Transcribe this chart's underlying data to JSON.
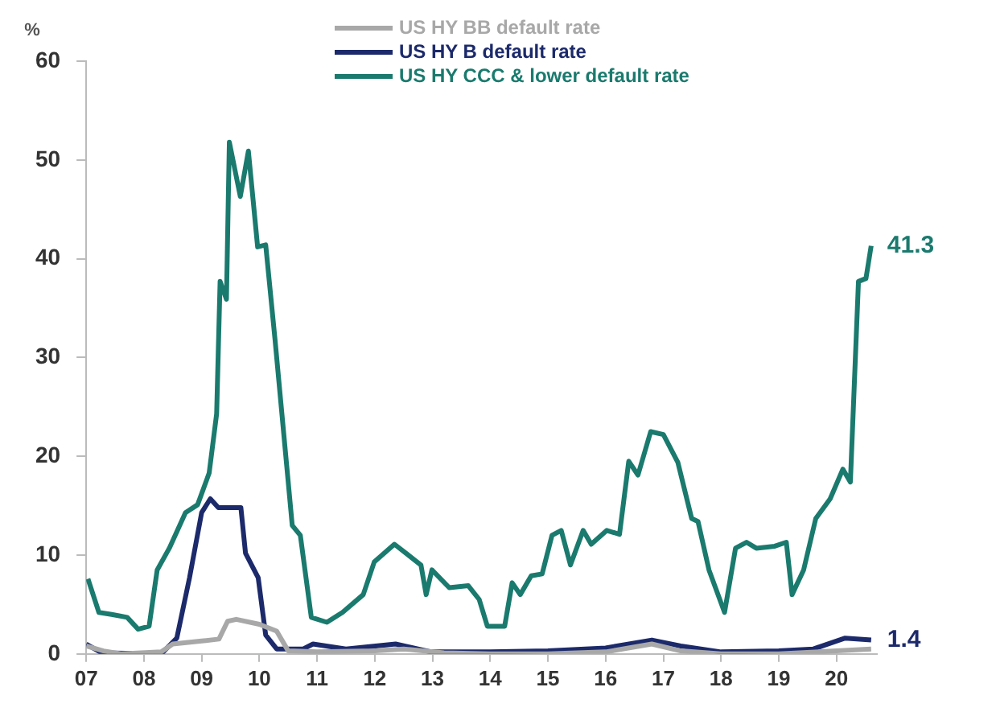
{
  "chart_data": {
    "type": "line",
    "ylabel": "%",
    "legend": "top",
    "grid": false,
    "marker": "none",
    "line_style": "solid",
    "xlim": [
      2007,
      2020.7
    ],
    "ylim": [
      0,
      60
    ],
    "yticks": [
      0,
      10,
      20,
      30,
      40,
      50,
      60
    ],
    "xticks": [
      {
        "value": 2007,
        "label": "07"
      },
      {
        "value": 2008,
        "label": "08"
      },
      {
        "value": 2009,
        "label": "09"
      },
      {
        "value": 2010,
        "label": "10"
      },
      {
        "value": 2011,
        "label": "11"
      },
      {
        "value": 2012,
        "label": "12"
      },
      {
        "value": 2013,
        "label": "13"
      },
      {
        "value": 2014,
        "label": "14"
      },
      {
        "value": 2015,
        "label": "15"
      },
      {
        "value": 2016,
        "label": "16"
      },
      {
        "value": 2017,
        "label": "17"
      },
      {
        "value": 2018,
        "label": "18"
      },
      {
        "value": 2019,
        "label": "19"
      },
      {
        "value": 2020,
        "label": "20"
      }
    ],
    "series": [
      {
        "name": "US HY BB default rate",
        "color": "#a8a8a8",
        "x": [
          2007.0,
          2007.3,
          2007.6,
          2008.3,
          2008.5,
          2009.0,
          2009.3,
          2009.45,
          2009.6,
          2010.0,
          2010.3,
          2010.5,
          2011.0,
          2012.0,
          2012.5,
          2013.2,
          2014.0,
          2015.0,
          2016.0,
          2016.8,
          2017.3,
          2018.0,
          2019.0,
          2020.0,
          2020.6
        ],
        "values": [
          0.8,
          0.3,
          0.0,
          0.2,
          1.0,
          1.3,
          1.5,
          3.3,
          3.5,
          3.0,
          2.3,
          0.3,
          0.2,
          0.3,
          0.5,
          0.1,
          0.0,
          0.0,
          0.2,
          1.0,
          0.3,
          0.0,
          0.0,
          0.3,
          0.5
        ]
      },
      {
        "name": "US HY B default rate",
        "color": "#1c2a6b",
        "x": [
          2007.0,
          2007.27,
          2008.3,
          2008.57,
          2008.79,
          2009.0,
          2009.15,
          2009.29,
          2009.68,
          2009.76,
          2009.98,
          2010.11,
          2010.3,
          2010.76,
          2010.93,
          2011.5,
          2012.36,
          2012.98,
          2014.0,
          2015.0,
          2016.0,
          2016.8,
          2017.3,
          2018.0,
          2019.0,
          2019.6,
          2020.15,
          2020.6
        ],
        "values": [
          1.0,
          0.1,
          0.0,
          1.6,
          7.7,
          14.3,
          15.7,
          14.8,
          14.8,
          10.2,
          7.7,
          1.9,
          0.5,
          0.5,
          1.0,
          0.5,
          1.0,
          0.2,
          0.2,
          0.3,
          0.6,
          1.4,
          0.8,
          0.2,
          0.3,
          0.5,
          1.6,
          1.4
        ]
      },
      {
        "name": "US HY CCC & lower default rate",
        "color": "#1a7a6e",
        "x": [
          2007.03,
          2007.22,
          2007.44,
          2007.71,
          2007.9,
          2008.09,
          2008.23,
          2008.44,
          2008.72,
          2008.93,
          2009.13,
          2009.26,
          2009.32,
          2009.43,
          2009.48,
          2009.67,
          2009.81,
          2009.97,
          2010.11,
          2010.27,
          2010.57,
          2010.71,
          2010.9,
          2011.17,
          2011.44,
          2011.8,
          2011.99,
          2012.34,
          2012.8,
          2012.89,
          2012.99,
          2013.29,
          2013.62,
          2013.81,
          2013.95,
          2014.25,
          2014.38,
          2014.52,
          2014.71,
          2014.9,
          2015.07,
          2015.23,
          2015.39,
          2015.61,
          2015.75,
          2016.02,
          2016.24,
          2016.4,
          2016.56,
          2016.78,
          2017.0,
          2017.25,
          2017.49,
          2017.6,
          2017.79,
          2018.06,
          2018.25,
          2018.44,
          2018.61,
          2018.93,
          2019.13,
          2019.23,
          2019.43,
          2019.64,
          2019.89,
          2020.11,
          2020.24,
          2020.38,
          2020.51,
          2020.6
        ],
        "values": [
          7.6,
          4.2,
          4.0,
          3.7,
          2.5,
          2.8,
          8.5,
          10.7,
          14.3,
          15.1,
          18.3,
          24.3,
          37.7,
          35.9,
          51.8,
          46.3,
          50.9,
          41.2,
          41.4,
          31.9,
          13.0,
          12.0,
          3.7,
          3.2,
          4.2,
          6.0,
          9.3,
          11.1,
          9.0,
          6.0,
          8.5,
          6.7,
          6.9,
          5.5,
          2.8,
          2.8,
          7.2,
          6.0,
          7.9,
          8.1,
          12.0,
          12.5,
          9.0,
          12.5,
          11.1,
          12.5,
          12.1,
          19.5,
          18.1,
          22.5,
          22.2,
          19.4,
          13.7,
          13.4,
          8.5,
          4.2,
          10.7,
          11.3,
          10.7,
          10.9,
          11.3,
          6.0,
          8.5,
          13.7,
          15.7,
          18.7,
          17.4,
          37.7,
          38.0,
          41.3
        ]
      }
    ],
    "annotations": [
      {
        "text": "41.3",
        "x": 2020.6,
        "y": 41.3
      },
      {
        "text": "1.4",
        "x": 2020.6,
        "y": 1.4
      }
    ]
  }
}
